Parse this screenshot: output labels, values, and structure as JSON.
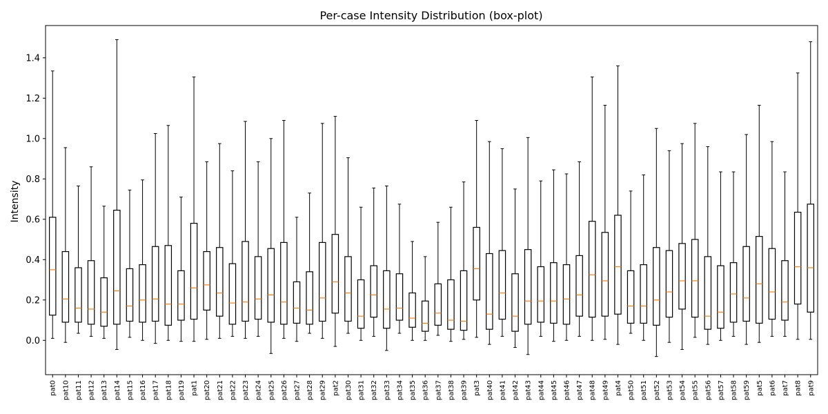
{
  "chart_data": {
    "type": "box",
    "title": "Per-case Intensity Distribution (box-plot)",
    "xlabel": "",
    "ylabel": "Intensity",
    "ylim": [
      -0.17,
      1.56
    ],
    "yticks": [
      "0.0",
      "0.2",
      "0.4",
      "0.6",
      "0.8",
      "1.0",
      "1.2",
      "1.4"
    ],
    "grid": false,
    "colors": {
      "box": "#000000",
      "median": "#ff7f0e"
    },
    "categories": [
      "pat0",
      "pat10",
      "pat11",
      "pat12",
      "pat13",
      "pat14",
      "pat15",
      "pat16",
      "pat17",
      "pat18",
      "pat19",
      "pat1",
      "pat20",
      "pat21",
      "pat22",
      "pat23",
      "pat24",
      "pat25",
      "pat26",
      "pat27",
      "pat28",
      "pat29",
      "pat2",
      "pat30",
      "pat31",
      "pat32",
      "pat33",
      "pat34",
      "pat35",
      "pat36",
      "pat37",
      "pat38",
      "pat39",
      "pat3",
      "pat40",
      "pat41",
      "pat42",
      "pat43",
      "pat44",
      "pat45",
      "pat46",
      "pat47",
      "pat48",
      "pat49",
      "pat4",
      "pat50",
      "pat51",
      "pat52",
      "pat53",
      "pat54",
      "pat55",
      "pat56",
      "pat57",
      "pat58",
      "pat59",
      "pat5",
      "pat6",
      "pat7",
      "pat8",
      "pat9"
    ],
    "boxes": [
      {
        "min": 0.01,
        "q1": 0.125,
        "median": 0.35,
        "q3": 0.61,
        "max": 1.335
      },
      {
        "min": -0.01,
        "q1": 0.09,
        "median": 0.205,
        "q3": 0.44,
        "max": 0.955
      },
      {
        "min": 0.035,
        "q1": 0.09,
        "median": 0.16,
        "q3": 0.36,
        "max": 0.765
      },
      {
        "min": 0.02,
        "q1": 0.08,
        "median": 0.155,
        "q3": 0.395,
        "max": 0.86
      },
      {
        "min": 0.01,
        "q1": 0.07,
        "median": 0.14,
        "q3": 0.31,
        "max": 0.665
      },
      {
        "min": -0.045,
        "q1": 0.08,
        "median": 0.245,
        "q3": 0.645,
        "max": 1.49
      },
      {
        "min": 0.015,
        "q1": 0.095,
        "median": 0.17,
        "q3": 0.355,
        "max": 0.745
      },
      {
        "min": 0.0,
        "q1": 0.09,
        "median": 0.2,
        "q3": 0.375,
        "max": 0.795
      },
      {
        "min": -0.015,
        "q1": 0.095,
        "median": 0.205,
        "q3": 0.465,
        "max": 1.025
      },
      {
        "min": 0.0,
        "q1": 0.075,
        "median": 0.18,
        "q3": 0.47,
        "max": 1.065
      },
      {
        "min": -0.005,
        "q1": 0.1,
        "median": 0.18,
        "q3": 0.345,
        "max": 0.71
      },
      {
        "min": -0.005,
        "q1": 0.105,
        "median": 0.26,
        "q3": 0.58,
        "max": 1.305
      },
      {
        "min": 0.005,
        "q1": 0.15,
        "median": 0.275,
        "q3": 0.44,
        "max": 0.885
      },
      {
        "min": 0.01,
        "q1": 0.12,
        "median": 0.235,
        "q3": 0.46,
        "max": 0.975
      },
      {
        "min": 0.02,
        "q1": 0.08,
        "median": 0.185,
        "q3": 0.38,
        "max": 0.84
      },
      {
        "min": 0.01,
        "q1": 0.095,
        "median": 0.19,
        "q3": 0.49,
        "max": 1.085
      },
      {
        "min": 0.02,
        "q1": 0.105,
        "median": 0.205,
        "q3": 0.415,
        "max": 0.885
      },
      {
        "min": -0.065,
        "q1": 0.09,
        "median": 0.225,
        "q3": 0.455,
        "max": 1.0
      },
      {
        "min": 0.01,
        "q1": 0.08,
        "median": 0.19,
        "q3": 0.485,
        "max": 1.09
      },
      {
        "min": -0.005,
        "q1": 0.085,
        "median": 0.16,
        "q3": 0.29,
        "max": 0.61
      },
      {
        "min": 0.035,
        "q1": 0.08,
        "median": 0.15,
        "q3": 0.34,
        "max": 0.73
      },
      {
        "min": 0.01,
        "q1": 0.095,
        "median": 0.21,
        "q3": 0.485,
        "max": 1.075
      },
      {
        "min": -0.03,
        "q1": 0.135,
        "median": 0.29,
        "q3": 0.525,
        "max": 1.11
      },
      {
        "min": 0.035,
        "q1": 0.095,
        "median": 0.235,
        "q3": 0.415,
        "max": 0.905
      },
      {
        "min": 0.0,
        "q1": 0.06,
        "median": 0.12,
        "q3": 0.3,
        "max": 0.66
      },
      {
        "min": 0.02,
        "q1": 0.115,
        "median": 0.225,
        "q3": 0.37,
        "max": 0.755
      },
      {
        "min": -0.05,
        "q1": 0.06,
        "median": 0.155,
        "q3": 0.345,
        "max": 0.765
      },
      {
        "min": 0.035,
        "q1": 0.1,
        "median": 0.16,
        "q3": 0.33,
        "max": 0.675
      },
      {
        "min": 0.0,
        "q1": 0.065,
        "median": 0.11,
        "q3": 0.235,
        "max": 0.49
      },
      {
        "min": 0.0,
        "q1": 0.045,
        "median": 0.085,
        "q3": 0.195,
        "max": 0.415
      },
      {
        "min": 0.025,
        "q1": 0.075,
        "median": 0.135,
        "q3": 0.28,
        "max": 0.585
      },
      {
        "min": -0.005,
        "q1": 0.055,
        "median": 0.1,
        "q3": 0.3,
        "max": 0.66
      },
      {
        "min": 0.005,
        "q1": 0.05,
        "median": 0.095,
        "q3": 0.345,
        "max": 0.785
      },
      {
        "min": 0.015,
        "q1": 0.2,
        "median": 0.355,
        "q3": 0.56,
        "max": 1.09
      },
      {
        "min": -0.02,
        "q1": 0.055,
        "median": 0.13,
        "q3": 0.43,
        "max": 0.985
      },
      {
        "min": 0.02,
        "q1": 0.105,
        "median": 0.235,
        "q3": 0.445,
        "max": 0.95
      },
      {
        "min": -0.035,
        "q1": 0.045,
        "median": 0.12,
        "q3": 0.33,
        "max": 0.75
      },
      {
        "min": -0.07,
        "q1": 0.08,
        "median": 0.195,
        "q3": 0.45,
        "max": 1.005
      },
      {
        "min": 0.02,
        "q1": 0.09,
        "median": 0.195,
        "q3": 0.365,
        "max": 0.79
      },
      {
        "min": -0.005,
        "q1": 0.085,
        "median": 0.195,
        "q3": 0.385,
        "max": 0.845
      },
      {
        "min": 0.0,
        "q1": 0.08,
        "median": 0.205,
        "q3": 0.375,
        "max": 0.825
      },
      {
        "min": 0.02,
        "q1": 0.12,
        "median": 0.225,
        "q3": 0.42,
        "max": 0.885
      },
      {
        "min": 0.0,
        "q1": 0.115,
        "median": 0.325,
        "q3": 0.59,
        "max": 1.305
      },
      {
        "min": 0.005,
        "q1": 0.12,
        "median": 0.295,
        "q3": 0.535,
        "max": 1.165
      },
      {
        "min": -0.02,
        "q1": 0.13,
        "median": 0.365,
        "q3": 0.62,
        "max": 1.36
      },
      {
        "min": 0.035,
        "q1": 0.085,
        "median": 0.17,
        "q3": 0.345,
        "max": 0.74
      },
      {
        "min": 0.0,
        "q1": 0.085,
        "median": 0.17,
        "q3": 0.375,
        "max": 0.82
      },
      {
        "min": -0.08,
        "q1": 0.075,
        "median": 0.2,
        "q3": 0.46,
        "max": 1.05
      },
      {
        "min": -0.01,
        "q1": 0.115,
        "median": 0.24,
        "q3": 0.445,
        "max": 0.94
      },
      {
        "min": -0.045,
        "q1": 0.155,
        "median": 0.295,
        "q3": 0.48,
        "max": 0.975
      },
      {
        "min": 0.015,
        "q1": 0.115,
        "median": 0.295,
        "q3": 0.5,
        "max": 1.075
      },
      {
        "min": -0.02,
        "q1": 0.055,
        "median": 0.12,
        "q3": 0.415,
        "max": 0.96
      },
      {
        "min": 0.0,
        "q1": 0.06,
        "median": 0.14,
        "q3": 0.37,
        "max": 0.835
      },
      {
        "min": 0.02,
        "q1": 0.09,
        "median": 0.23,
        "q3": 0.385,
        "max": 0.835
      },
      {
        "min": -0.02,
        "q1": 0.095,
        "median": 0.21,
        "q3": 0.465,
        "max": 1.02
      },
      {
        "min": -0.01,
        "q1": 0.085,
        "median": 0.28,
        "q3": 0.515,
        "max": 1.165
      },
      {
        "min": 0.02,
        "q1": 0.105,
        "median": 0.24,
        "q3": 0.455,
        "max": 0.985
      },
      {
        "min": 0.02,
        "q1": 0.1,
        "median": 0.19,
        "q3": 0.395,
        "max": 0.835
      },
      {
        "min": 0.005,
        "q1": 0.18,
        "median": 0.365,
        "q3": 0.635,
        "max": 1.325
      },
      {
        "min": 0.005,
        "q1": 0.14,
        "median": 0.36,
        "q3": 0.675,
        "max": 1.48
      }
    ]
  }
}
